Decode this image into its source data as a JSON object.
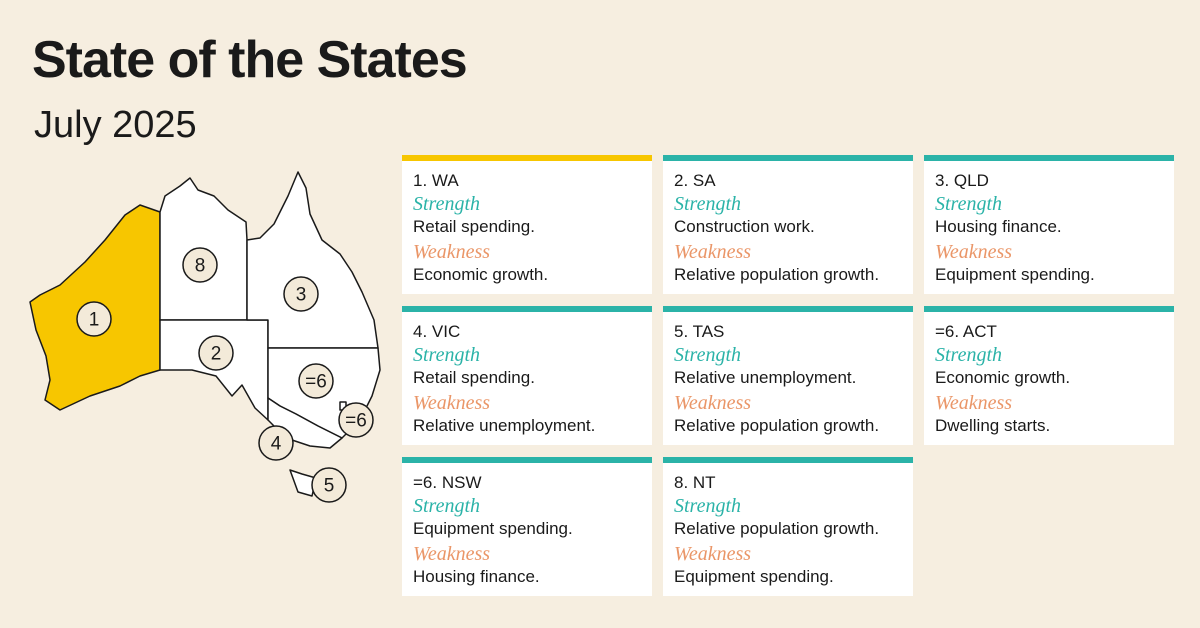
{
  "header": {
    "title": "State of the States",
    "subtitle": "July 2025"
  },
  "map": {
    "labels": [
      "1",
      "8",
      "2",
      "3",
      "=6",
      "=6",
      "4",
      "5"
    ]
  },
  "cards": [
    {
      "rank_state": "1. WA",
      "strength_label": "Strength",
      "strength": "Retail spending.",
      "weakness_label": "Weakness",
      "weakness": "Economic growth."
    },
    {
      "rank_state": "2. SA",
      "strength_label": "Strength",
      "strength": "Construction work.",
      "weakness_label": "Weakness",
      "weakness": "Relative population growth."
    },
    {
      "rank_state": "3. QLD",
      "strength_label": "Strength",
      "strength": "Housing finance.",
      "weakness_label": "Weakness",
      "weakness": "Equipment spending."
    },
    {
      "rank_state": "4. VIC",
      "strength_label": "Strength",
      "strength": "Retail spending.",
      "weakness_label": "Weakness",
      "weakness": "Relative unemployment."
    },
    {
      "rank_state": "5. TAS",
      "strength_label": "Strength",
      "strength": "Relative unemployment.",
      "weakness_label": "Weakness",
      "weakness": "Relative population growth."
    },
    {
      "rank_state": "=6. ACT",
      "strength_label": "Strength",
      "strength": "Economic growth.",
      "weakness_label": "Weakness",
      "weakness": "Dwelling starts."
    },
    {
      "rank_state": "=6. NSW",
      "strength_label": "Strength",
      "strength": "Equipment spending.",
      "weakness_label": "Weakness",
      "weakness": "Housing finance."
    },
    {
      "rank_state": "8. NT",
      "strength_label": "Strength",
      "strength": "Relative population growth.",
      "weakness_label": "Weakness",
      "weakness": "Equipment spending."
    }
  ]
}
